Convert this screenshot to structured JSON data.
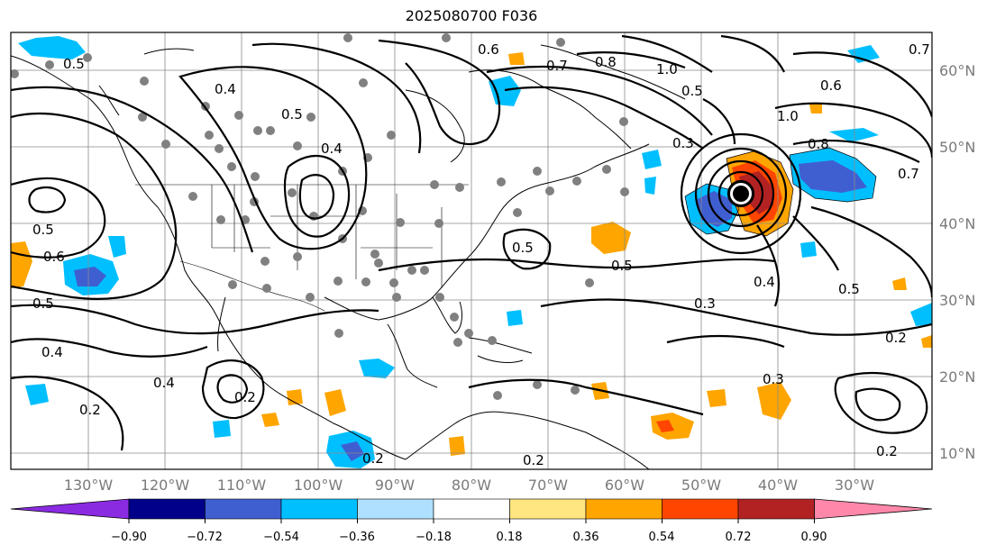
{
  "title": "2025080700 F036",
  "longitude_labels": [
    "130°W",
    "120°W",
    "110°W",
    "100°W",
    "90°W",
    "80°W",
    "70°W",
    "60°W",
    "50°W",
    "40°W",
    "30°W"
  ],
  "latitude_labels": [
    "60°N",
    "50°N",
    "40°N",
    "30°N",
    "20°N",
    "10°N"
  ],
  "colorbar": {
    "tick_labels": [
      "−0.90",
      "−0.72",
      "−0.54",
      "−0.36",
      "−0.18",
      "0.18",
      "0.36",
      "0.54",
      "0.72",
      "0.90"
    ],
    "colors": [
      "#8a2be2",
      "#00008b",
      "#3f5fd0",
      "#00bfff",
      "#b0e0ff",
      "#ffffff",
      "#ffe680",
      "#ffa500",
      "#ff4500",
      "#b22222",
      "#ff88aa"
    ]
  },
  "contour_labels": [
    "0.5",
    "0.4",
    "0.5",
    "0.6",
    "0.7",
    "0.8",
    "1.0",
    "0.8",
    "0.5",
    "0.6",
    "0.5",
    "0.4",
    "0.2",
    "0.4",
    "0.2",
    "0.5",
    "0.3",
    "0.5",
    "0.4",
    "0.2",
    "0.3",
    "0.2",
    "0.7",
    "1.0",
    "0.6",
    "0.7",
    "0.5",
    "0.2",
    "0.4",
    "0.3",
    "0.2",
    "0.5"
  ],
  "shading_colors": {
    "light_blue": "#00bfff",
    "blue": "#3f5fd0",
    "orange": "#ffa500",
    "red_orange": "#ff4500",
    "dark_red": "#b22222",
    "marker": "#000000",
    "station": "#808080"
  }
}
